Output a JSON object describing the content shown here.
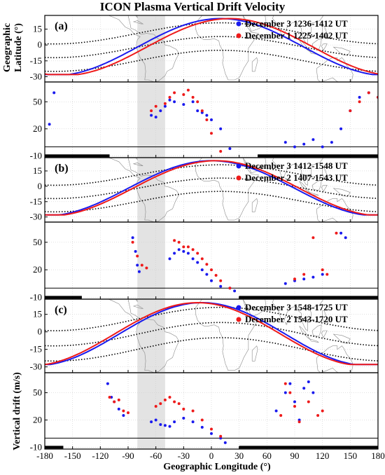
{
  "title": "ICON Plasma Vertical Drift Velocity",
  "xlabel": "Geographic Longitude (°)",
  "lat_ylabel_line1": "Geographic",
  "lat_ylabel_line2": "Latitude (°)",
  "drift_ylabel": "Vertical drift (m/s)",
  "colors": {
    "blue": "#1a1aee",
    "red": "#ee1a1a",
    "shade": "#e3e3e3",
    "map": "#8a8a8a",
    "grid": "#cfcfcf"
  },
  "x_ticks": [
    -180,
    -150,
    -120,
    -90,
    -60,
    -30,
    0,
    30,
    60,
    90,
    120,
    150,
    180
  ],
  "x_tick_labels": [
    "-180",
    "-150",
    "-120",
    "-90",
    "-60",
    "-30",
    "0",
    "30",
    "60",
    "90",
    "120",
    "150",
    "180"
  ],
  "shaded_longitudes": [
    -80,
    -50
  ],
  "chart_data": [
    {
      "type": "line",
      "panel": "(a)",
      "role": "latitude",
      "xlim": [
        -180,
        180
      ],
      "ylim": [
        -35,
        28
      ],
      "y_ticks": [
        15,
        0,
        -15,
        -30
      ],
      "y_tick_labels": [
        "15",
        "0",
        "-15",
        "-30"
      ],
      "legend": [
        "December 3  1236-1412 UT",
        "December 1  1225-1402 UT"
      ],
      "series": [
        {
          "name": "December 3  1236-1412 UT",
          "color": "blue",
          "peak_lon": 10,
          "min_lon": -125,
          "lon_range": [
            -180,
            180
          ]
        },
        {
          "name": "December 1  1225-1402 UT",
          "color": "red",
          "peak_lon": 20,
          "min_lon": -115,
          "lon_range": [
            -180,
            180
          ]
        }
      ]
    },
    {
      "type": "scatter",
      "panel": "(a)",
      "role": "drift",
      "xlim": [
        -180,
        180
      ],
      "ylim": [
        -12,
        72
      ],
      "y_ticks": [
        50,
        20,
        -10
      ],
      "y_tick_labels": [
        "50",
        "20",
        "-10"
      ],
      "series": [
        {
          "name": "December 3  1236-1412 UT",
          "color": "blue",
          "x": [
            -175,
            -170,
            -65,
            -60,
            -55,
            -50,
            -45,
            -40,
            -30,
            -20,
            -15,
            -10,
            -5,
            0,
            10,
            20,
            80,
            90,
            100,
            110,
            120,
            130,
            140,
            150,
            160,
            170,
            180
          ],
          "y": [
            25,
            60,
            35,
            33,
            40,
            45,
            52,
            50,
            47,
            50,
            40,
            38,
            35,
            30,
            20,
            -2,
            5,
            0,
            3,
            8,
            0,
            5,
            20,
            40,
            55,
            60,
            55
          ]
        },
        {
          "name": "December 1  1225-1402 UT",
          "color": "red",
          "x": [
            -65,
            -60,
            -50,
            -45,
            -40,
            -30,
            -25,
            -20,
            -15,
            -10,
            -5,
            0,
            10,
            150,
            160,
            170,
            180
          ],
          "y": [
            40,
            45,
            48,
            55,
            60,
            58,
            63,
            55,
            50,
            40,
            30,
            15,
            -5,
            40,
            50,
            60,
            55
          ]
        }
      ]
    },
    {
      "type": "line",
      "panel": "(b)",
      "role": "latitude",
      "xlim": [
        -180,
        180
      ],
      "ylim": [
        -35,
        28
      ],
      "y_ticks": [
        15,
        0,
        -15,
        -30
      ],
      "y_tick_labels": [
        "15",
        "0",
        "-15",
        "-30"
      ],
      "legend": [
        "December 3  1412-1548 UT",
        "December 2  1407-1543 UT"
      ],
      "series": [
        {
          "name": "December 3  1412-1548 UT",
          "color": "blue",
          "peak_lon": 0,
          "min_lon": -135,
          "lon_range": [
            -180,
            180
          ]
        },
        {
          "name": "December 2  1407-1543 UT",
          "color": "red",
          "peak_lon": 5,
          "min_lon": -130,
          "lon_range": [
            -180,
            180
          ]
        }
      ]
    },
    {
      "type": "scatter",
      "panel": "(b)",
      "role": "drift",
      "xlim": [
        -180,
        180
      ],
      "ylim": [
        -12,
        72
      ],
      "y_ticks": [
        50,
        20,
        -10
      ],
      "y_tick_labels": [
        "50",
        "20",
        "-10"
      ],
      "series": [
        {
          "name": "December 3  1412-1548 UT",
          "color": "blue",
          "x": [
            -85,
            -82,
            -80,
            -78,
            -45,
            -40,
            -35,
            -30,
            -25,
            -20,
            -15,
            -10,
            -5,
            0,
            10,
            20,
            25,
            80,
            90,
            100,
            110,
            120,
            140,
            145
          ],
          "y": [
            55,
            40,
            25,
            18,
            32,
            38,
            42,
            40,
            38,
            32,
            28,
            20,
            15,
            8,
            2,
            0,
            -3,
            5,
            8,
            10,
            12,
            15,
            60,
            55
          ]
        },
        {
          "name": "December 2  1407-1543 UT",
          "color": "red",
          "x": [
            -85,
            -80,
            -75,
            -70,
            -40,
            -35,
            -30,
            -25,
            -20,
            -15,
            -10,
            -5,
            0,
            5,
            10,
            20,
            90,
            100,
            110,
            120,
            125,
            135
          ],
          "y": [
            50,
            35,
            25,
            22,
            52,
            50,
            45,
            45,
            42,
            38,
            32,
            26,
            20,
            14,
            8,
            0,
            10,
            15,
            55,
            20,
            15,
            60
          ]
        }
      ]
    },
    {
      "type": "line",
      "panel": "(c)",
      "role": "latitude",
      "xlim": [
        -180,
        180
      ],
      "ylim": [
        -35,
        28
      ],
      "y_ticks": [
        15,
        0,
        -15,
        -30
      ],
      "y_tick_labels": [
        "15",
        "0",
        "-15",
        "-30"
      ],
      "legend": [
        "December 3  1548-1725 UT",
        "December 2  1543-1720 UT"
      ],
      "series": [
        {
          "name": "December 3  1548-1725 UT",
          "color": "blue",
          "peak_lon": -10,
          "min_lon": -150,
          "lon_range": [
            -180,
            180
          ]
        },
        {
          "name": "December 2  1543-1720 UT",
          "color": "red",
          "peak_lon": -15,
          "min_lon": -155,
          "lon_range": [
            -180,
            180
          ]
        }
      ]
    },
    {
      "type": "scatter",
      "panel": "(c)",
      "role": "drift",
      "xlim": [
        -180,
        180
      ],
      "ylim": [
        -12,
        72
      ],
      "y_ticks": [
        50,
        20,
        -10
      ],
      "y_tick_labels": [
        "50",
        "20",
        "-10"
      ],
      "series": [
        {
          "name": "December 3  1548-1725 UT",
          "color": "blue",
          "x": [
            -112,
            -108,
            -105,
            -100,
            -95,
            -65,
            -60,
            -55,
            -50,
            -45,
            -40,
            -30,
            -20,
            -10,
            0,
            10,
            15,
            70,
            80,
            85,
            90,
            95,
            100,
            105,
            110
          ],
          "y": [
            60,
            45,
            40,
            32,
            25,
            18,
            20,
            15,
            14,
            13,
            18,
            22,
            18,
            12,
            5,
            0,
            -5,
            30,
            50,
            60,
            40,
            20,
            55,
            62,
            50
          ]
        },
        {
          "name": "December 2  1543-1720 UT",
          "color": "red",
          "x": [
            -110,
            -105,
            -100,
            -95,
            -90,
            -60,
            -55,
            -50,
            -45,
            -40,
            -35,
            -30,
            -20,
            -10,
            0,
            10,
            75,
            80,
            85,
            90,
            95,
            105,
            115,
            120
          ],
          "y": [
            45,
            40,
            42,
            30,
            28,
            35,
            38,
            42,
            45,
            40,
            38,
            32,
            30,
            20,
            10,
            2,
            25,
            60,
            50,
            35,
            18,
            40,
            25,
            30
          ]
        }
      ]
    }
  ]
}
